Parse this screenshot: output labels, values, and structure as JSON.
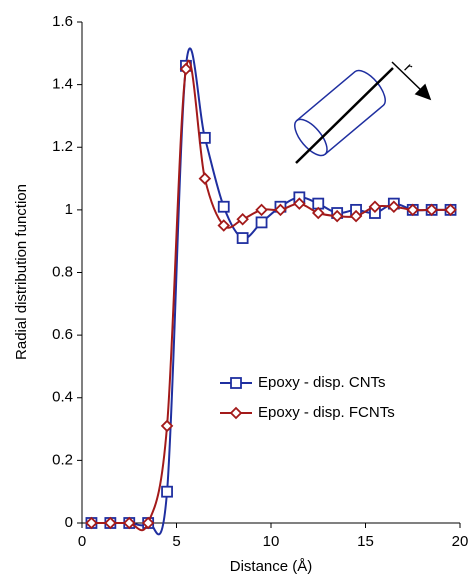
{
  "chart_data": {
    "type": "line",
    "x_label": "Distance (Å)",
    "y_label": "Radial distribution function",
    "annotation": "r",
    "x": [
      0.5,
      1.5,
      2.5,
      3.5,
      4.5,
      5.5,
      6.5,
      7.5,
      8.5,
      9.5,
      10.5,
      11.5,
      12.5,
      13.5,
      14.5,
      15.5,
      16.5,
      17.5,
      18.5,
      19.5
    ],
    "series": [
      {
        "name": "Epoxy - disp. CNTs",
        "color": "#1f2fa0",
        "marker": "square",
        "values": [
          0,
          0,
          0,
          0,
          0.1,
          1.46,
          1.23,
          1.01,
          0.91,
          0.96,
          1.01,
          1.04,
          1.02,
          0.99,
          1.0,
          0.99,
          1.02,
          1.0,
          1.0,
          1.0
        ]
      },
      {
        "name": "Epoxy - disp. FCNTs",
        "color": "#a31a1a",
        "marker": "diamond",
        "values": [
          0,
          0,
          0,
          0,
          0.31,
          1.45,
          1.1,
          0.95,
          0.97,
          1.0,
          1.0,
          1.02,
          0.99,
          0.98,
          0.98,
          1.01,
          1.01,
          1.0,
          1.0,
          1.0
        ]
      }
    ],
    "xlim": [
      0,
      20
    ],
    "xticks": [
      0,
      5,
      10,
      15,
      20
    ],
    "ylim": [
      0,
      1.6
    ],
    "yticks": [
      0,
      0.2,
      0.4,
      0.6,
      0.8,
      1,
      1.2,
      1.4,
      1.6
    ],
    "grid": false
  }
}
